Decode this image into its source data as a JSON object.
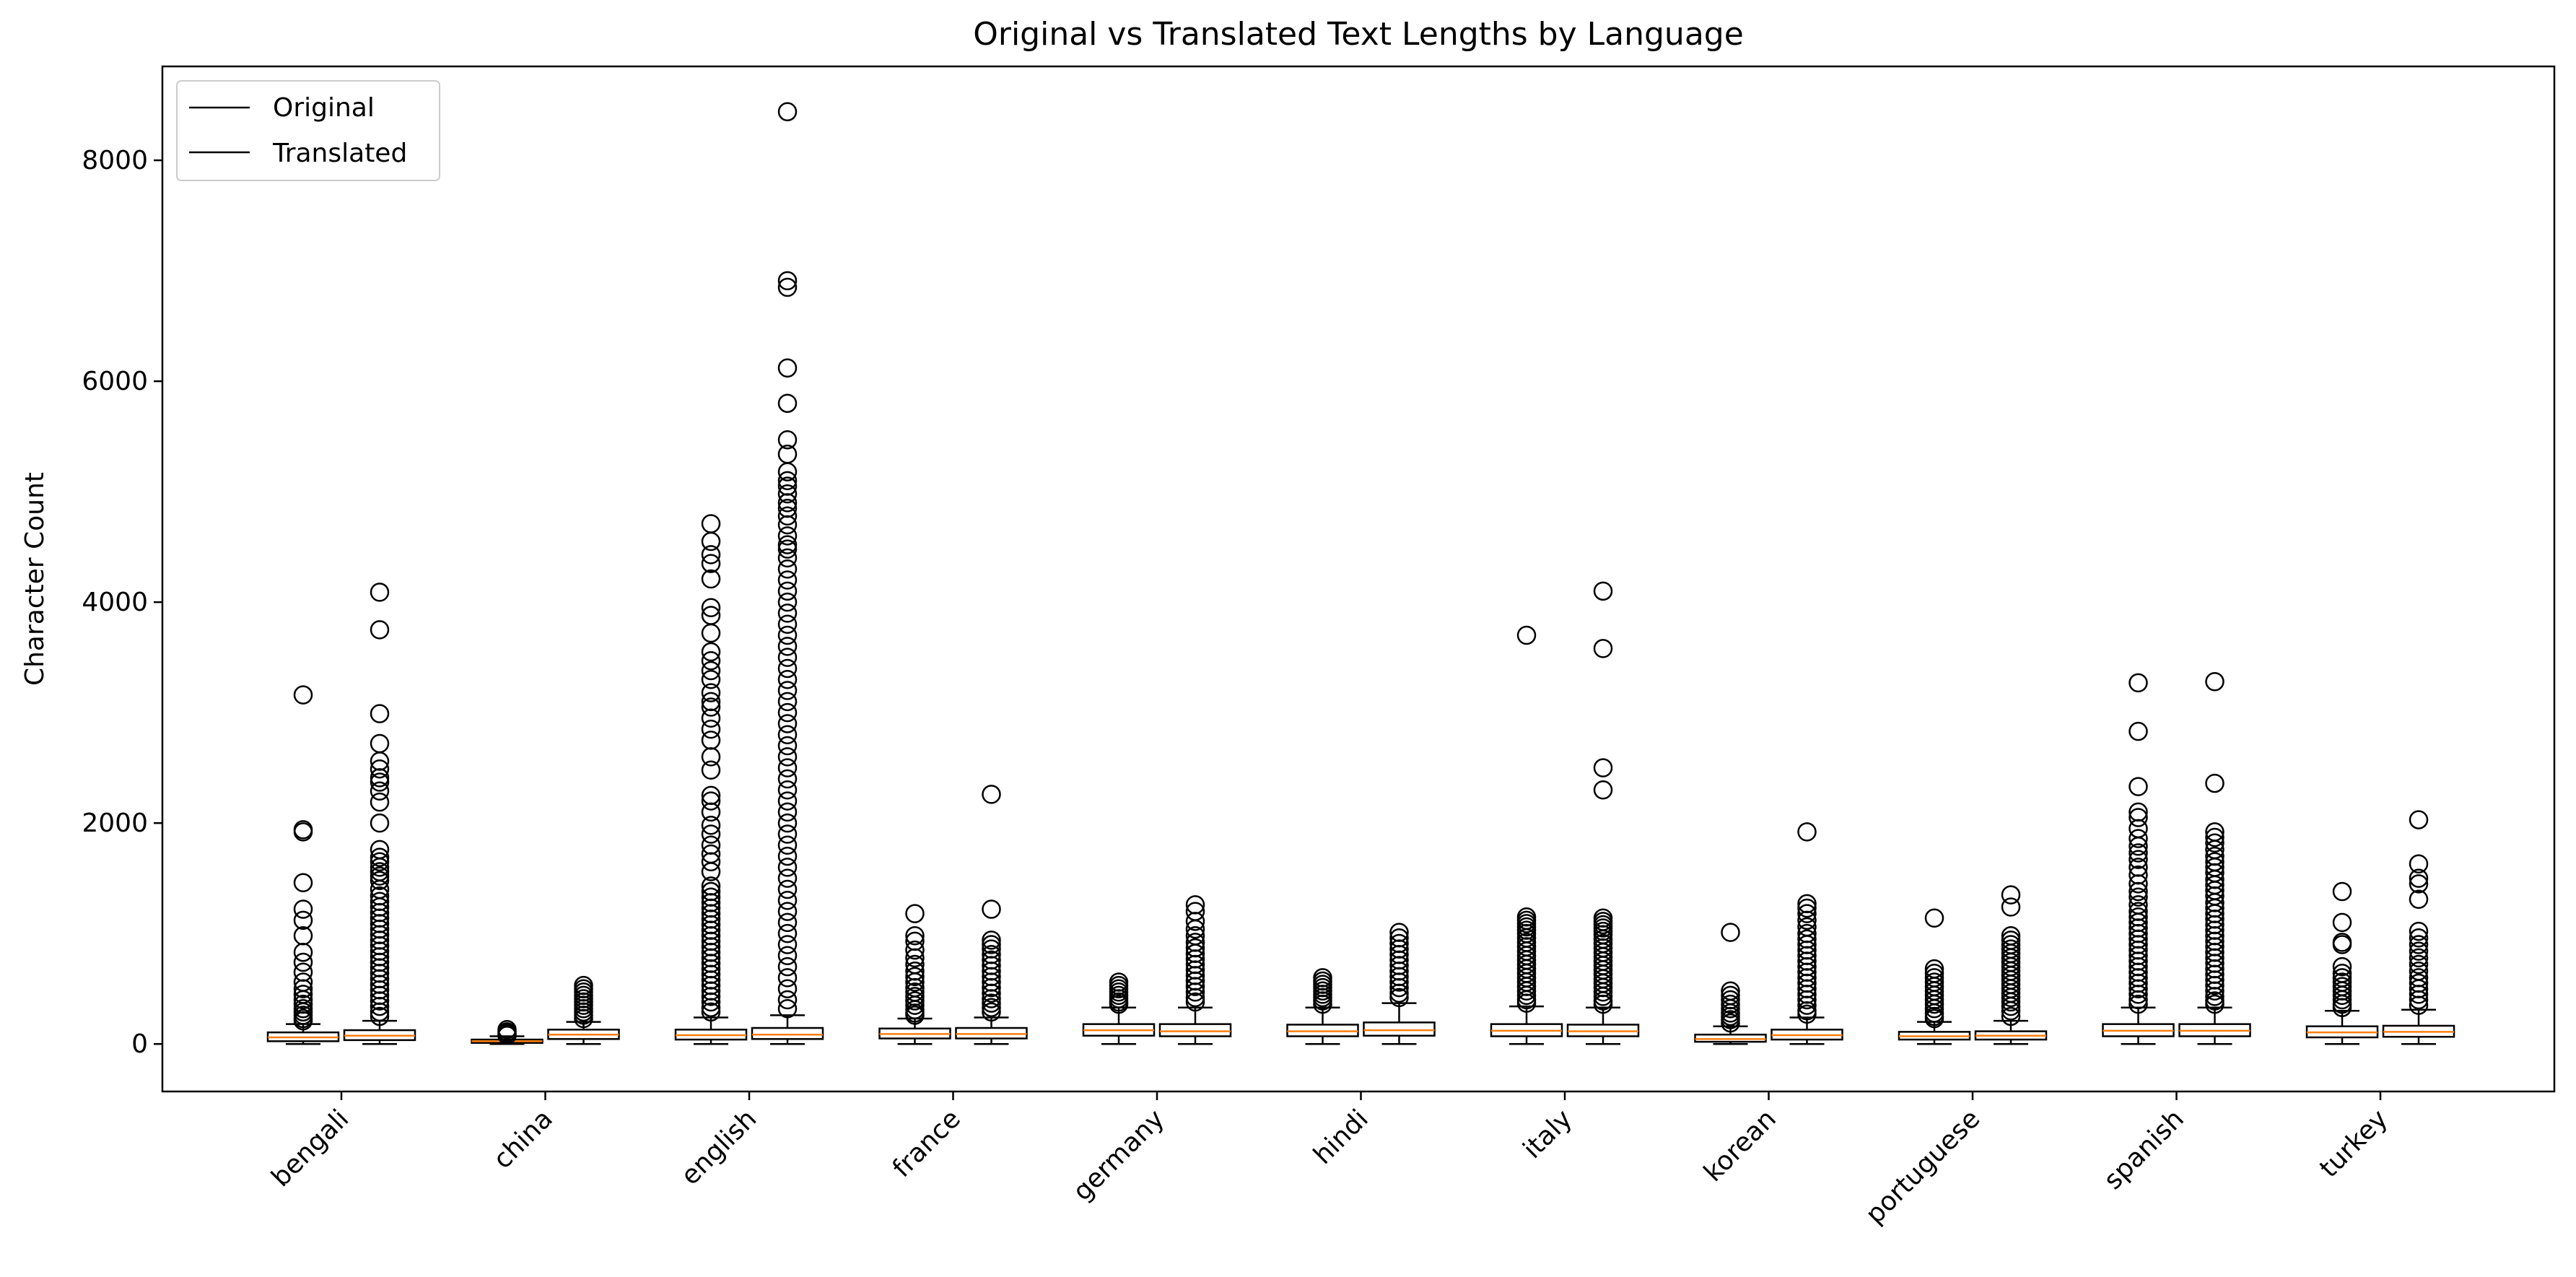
{
  "chart_data": {
    "type": "boxplot",
    "title": "Original vs Translated Text Lengths by Language",
    "ylabel": "Character Count",
    "xlabel": "",
    "ylim": [
      -430,
      8850
    ],
    "yticks": [
      0,
      2000,
      4000,
      6000,
      8000
    ],
    "grid": false,
    "legend": {
      "placement": "top-left",
      "entries": [
        "Original",
        "Translated"
      ]
    },
    "colors": {
      "box_edge": "#000000",
      "box_fill": "#ffffff",
      "median": "#ff7f0e",
      "whisker": "#000000",
      "flier": "#000000"
    },
    "categories": [
      "bengali",
      "china",
      "english",
      "france",
      "germany",
      "hindi",
      "italy",
      "korean",
      "portuguese",
      "spanish",
      "turkey"
    ],
    "series": [
      {
        "name": "Original",
        "boxes": [
          {
            "whislo": 0,
            "q1": 25,
            "med": 60,
            "q3": 105,
            "whishi": 180,
            "fliers": [
              3160,
              1940,
              1920,
              1460,
              1220,
              1120,
              980,
              830,
              740,
              650,
              560,
              500,
              450,
              400,
              360,
              320,
              290,
              260,
              230,
              210
            ]
          },
          {
            "whislo": 0,
            "q1": 10,
            "med": 25,
            "q3": 40,
            "whishi": 70,
            "fliers": [
              130,
              110,
              95,
              85,
              78
            ]
          },
          {
            "whislo": 0,
            "q1": 40,
            "med": 80,
            "q3": 130,
            "whishi": 240,
            "fliers": [
              4710,
              4550,
              4430,
              4350,
              4210,
              3950,
              3880,
              3720,
              3550,
              3470,
              3380,
              3300,
              3180,
              3100,
              3050,
              2950,
              2850,
              2750,
              2600,
              2480,
              2250,
              2200,
              2100,
              1980,
              1900,
              1800,
              1720,
              1650,
              1560,
              1430,
              1380,
              1330,
              1280,
              1230,
              1180,
              1130,
              1080,
              1030,
              980,
              930,
              880,
              830,
              780,
              730,
              680,
              630,
              580,
              530,
              480,
              430,
              380,
              330,
              290
            ]
          },
          {
            "whislo": 0,
            "q1": 50,
            "med": 90,
            "q3": 140,
            "whishi": 230,
            "fliers": [
              1180,
              980,
              930,
              850,
              780,
              720,
              660,
              610,
              560,
              510,
              470,
              430,
              390,
              350,
              310,
              280,
              260
            ]
          },
          {
            "whislo": 0,
            "q1": 75,
            "med": 125,
            "q3": 180,
            "whishi": 330,
            "fliers": [
              560,
              530,
              500,
              470,
              440,
              410,
              380,
              360
            ]
          },
          {
            "whislo": 0,
            "q1": 70,
            "med": 115,
            "q3": 175,
            "whishi": 330,
            "fliers": [
              600,
              570,
              540,
              510,
              480,
              450,
              420,
              390,
              360
            ]
          },
          {
            "whislo": 0,
            "q1": 70,
            "med": 120,
            "q3": 180,
            "whishi": 340,
            "fliers": [
              3700,
              1150,
              1120,
              1090,
              1060,
              1030,
              1000,
              960,
              920,
              880,
              840,
              800,
              760,
              720,
              680,
              640,
              600,
              560,
              520,
              480,
              440,
              400,
              370
            ]
          },
          {
            "whislo": 0,
            "q1": 20,
            "med": 45,
            "q3": 85,
            "whishi": 160,
            "fliers": [
              1010,
              480,
              440,
              400,
              360,
              320,
              280,
              250,
              220,
              190
            ]
          },
          {
            "whislo": 0,
            "q1": 40,
            "med": 70,
            "q3": 110,
            "whishi": 200,
            "fliers": [
              1140,
              680,
              640,
              600,
              560,
              520,
              480,
              440,
              400,
              360,
              320,
              280,
              250,
              230
            ]
          },
          {
            "whislo": 0,
            "q1": 70,
            "med": 120,
            "q3": 180,
            "whishi": 330,
            "fliers": [
              3270,
              2830,
              2330,
              2100,
              2050,
              1950,
              1860,
              1790,
              1730,
              1670,
              1600,
              1530,
              1450,
              1380,
              1330,
              1260,
              1200,
              1150,
              1100,
              1050,
              1000,
              950,
              900,
              850,
              800,
              750,
              700,
              650,
              600,
              550,
              500,
              450,
              400,
              360
            ]
          },
          {
            "whislo": 0,
            "q1": 60,
            "med": 105,
            "q3": 160,
            "whishi": 300,
            "fliers": [
              1380,
              1100,
              920,
              900,
              700,
              640,
              600,
              560,
              520,
              480,
              440,
              400,
              360,
              330
            ]
          }
        ]
      },
      {
        "name": "Translated",
        "boxes": [
          {
            "whislo": 0,
            "q1": 35,
            "med": 75,
            "q3": 125,
            "whishi": 210,
            "fliers": [
              4090,
              3750,
              2990,
              2720,
              2560,
              2490,
              2410,
              2370,
              2290,
              2190,
              2000,
              1760,
              1690,
              1650,
              1600,
              1560,
              1520,
              1480,
              1400,
              1340,
              1290,
              1240,
              1190,
              1140,
              1090,
              1040,
              990,
              940,
              890,
              840,
              790,
              740,
              690,
              640,
              590,
              540,
              490,
              440,
              390,
              340,
              290,
              250
            ]
          },
          {
            "whislo": 0,
            "q1": 45,
            "med": 85,
            "q3": 130,
            "whishi": 200,
            "fliers": [
              530,
              500,
              470,
              440,
              410,
              380,
              350,
              320,
              290,
              260,
              230
            ]
          },
          {
            "whislo": 0,
            "q1": 45,
            "med": 85,
            "q3": 145,
            "whishi": 260,
            "fliers": [
              8440,
              6910,
              6850,
              6120,
              5800,
              5470,
              5340,
              5180,
              5100,
              5050,
              4980,
              4900,
              4850,
              4780,
              4700,
              4600,
              4520,
              4480,
              4400,
              4300,
              4200,
              4100,
              4000,
              3900,
              3800,
              3700,
              3600,
              3500,
              3400,
              3300,
              3200,
              3100,
              3000,
              2900,
              2800,
              2700,
              2600,
              2500,
              2400,
              2300,
              2200,
              2100,
              2000,
              1900,
              1800,
              1700,
              1600,
              1500,
              1400,
              1300,
              1200,
              1100,
              1000,
              900,
              800,
              700,
              600,
              500,
              400,
              320
            ]
          },
          {
            "whislo": 0,
            "q1": 50,
            "med": 90,
            "q3": 145,
            "whishi": 240,
            "fliers": [
              2260,
              1220,
              940,
              900,
              860,
              810,
              760,
              710,
              660,
              610,
              560,
              510,
              460,
              410,
              370,
              330,
              290
            ]
          },
          {
            "whislo": 0,
            "q1": 70,
            "med": 115,
            "q3": 180,
            "whishi": 330,
            "fliers": [
              1260,
              1200,
              1110,
              1040,
              980,
              920,
              870,
              820,
              770,
              720,
              670,
              620,
              570,
              520,
              470,
              420,
              380
            ]
          },
          {
            "whislo": 0,
            "q1": 75,
            "med": 125,
            "q3": 195,
            "whishi": 370,
            "fliers": [
              1010,
              960,
              910,
              860,
              810,
              760,
              710,
              660,
              610,
              560,
              510,
              460,
              420
            ]
          },
          {
            "whislo": 0,
            "q1": 70,
            "med": 115,
            "q3": 175,
            "whishi": 330,
            "fliers": [
              4100,
              3580,
              2500,
              2300,
              1140,
              1110,
              1080,
              1050,
              1020,
              990,
              950,
              910,
              870,
              830,
              790,
              750,
              710,
              670,
              630,
              590,
              550,
              510,
              470,
              430,
              390,
              360
            ]
          },
          {
            "whislo": 0,
            "q1": 40,
            "med": 80,
            "q3": 130,
            "whishi": 240,
            "fliers": [
              1920,
              1270,
              1230,
              1180,
              1120,
              1060,
              1000,
              950,
              900,
              850,
              800,
              750,
              700,
              650,
              600,
              550,
              500,
              450,
              400,
              350,
              300,
              270
            ]
          },
          {
            "whislo": 0,
            "q1": 40,
            "med": 75,
            "q3": 115,
            "whishi": 210,
            "fliers": [
              1350,
              1240,
              980,
              940,
              900,
              860,
              820,
              780,
              740,
              700,
              660,
              620,
              580,
              540,
              500,
              460,
              420,
              380,
              340,
              300,
              250
            ]
          },
          {
            "whislo": 0,
            "q1": 70,
            "med": 120,
            "q3": 180,
            "whishi": 330,
            "fliers": [
              3280,
              2360,
              1920,
              1870,
              1820,
              1760,
              1700,
              1650,
              1600,
              1550,
              1490,
              1440,
              1390,
              1340,
              1280,
              1230,
              1180,
              1130,
              1080,
              1030,
              980,
              930,
              880,
              830,
              780,
              730,
              680,
              630,
              580,
              530,
              480,
              430,
              390,
              360
            ]
          },
          {
            "whislo": 0,
            "q1": 65,
            "med": 110,
            "q3": 165,
            "whishi": 310,
            "fliers": [
              2030,
              1630,
              1500,
              1450,
              1310,
              1020,
              960,
              900,
              840,
              780,
              720,
              660,
              600,
              550,
              500,
              450,
              400,
              350
            ]
          }
        ]
      }
    ]
  }
}
